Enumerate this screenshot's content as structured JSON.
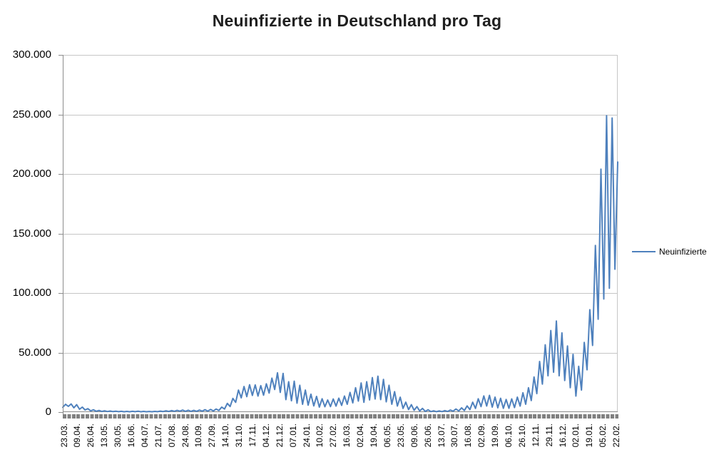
{
  "chart_data": {
    "type": "line",
    "title": "Neuinfizierte in Deutschland pro Tag",
    "xlabel": "",
    "ylabel": "",
    "ylim": [
      0,
      300000
    ],
    "grid": "horizontal",
    "legend_position": "right",
    "y_ticks": [
      0,
      50000,
      100000,
      150000,
      200000,
      250000,
      300000
    ],
    "y_tick_labels": [
      "0",
      "50.000",
      "100.000",
      "150.000",
      "200.000",
      "250.000",
      "300.000"
    ],
    "x_tick_step_categories": 17,
    "x_tick_labels": [
      "23.03.",
      "09.04.",
      "26.04.",
      "13.05.",
      "30.05.",
      "16.06.",
      "04.07.",
      "21.07.",
      "07.08.",
      "24.08.",
      "10.09.",
      "27.09.",
      "14.10.",
      "31.10.",
      "17.11.",
      "04.12.",
      "21.12.",
      "07.01.",
      "24.01.",
      "10.02.",
      "27.02.",
      "16.03.",
      "02.04.",
      "19.04.",
      "06.05.",
      "23.05.",
      "09.06.",
      "26.06.",
      "13.07.",
      "30.07.",
      "16.08.",
      "02.09.",
      "19.09.",
      "06.10.",
      "26.10.",
      "12.11.",
      "29.11.",
      "16.12.",
      "02.01.",
      "19.01.",
      "05.02.",
      "22.02."
    ],
    "series": [
      {
        "name": "Neuinfizierte",
        "color": "#4F81BD",
        "sampling": "two points per week (weekly minimum, weekly maximum), read from pixels",
        "values": [
          4000,
          6500,
          4800,
          6800,
          3600,
          6200,
          2400,
          4200,
          1800,
          2900,
          1000,
          1900,
          700,
          1400,
          550,
          1100,
          450,
          900,
          400,
          750,
          350,
          650,
          300,
          600,
          320,
          650,
          380,
          750,
          320,
          600,
          280,
          550,
          320,
          600,
          380,
          850,
          450,
          1050,
          550,
          1250,
          650,
          1450,
          750,
          1700,
          650,
          1550,
          620,
          1450,
          650,
          1650,
          750,
          1950,
          850,
          2200,
          950,
          2600,
          1300,
          4200,
          2600,
          7300,
          4700,
          11500,
          8200,
          18500,
          12000,
          21500,
          13000,
          23000,
          14000,
          22800,
          13500,
          22200,
          14200,
          23800,
          16000,
          28500,
          19000,
          33000,
          16500,
          32500,
          10500,
          25500,
          9500,
          26000,
          7500,
          22500,
          6500,
          18500,
          5800,
          15000,
          5200,
          13200,
          4200,
          11200,
          4500,
          10200,
          4600,
          11000,
          5000,
          11700,
          5600,
          13500,
          6600,
          16500,
          7700,
          20500,
          9200,
          24500,
          8200,
          25500,
          10200,
          29000,
          11000,
          30200,
          10500,
          27500,
          8600,
          22500,
          6600,
          17200,
          5100,
          12500,
          3100,
          8300,
          2100,
          6200,
          1500,
          4600,
          950,
          3100,
          550,
          1900,
          420,
          1100,
          380,
          950,
          420,
          1250,
          520,
          1700,
          750,
          2600,
          950,
          3600,
          1300,
          5200,
          2100,
          8300,
          3100,
          11200,
          4600,
          13600,
          5100,
          14100,
          4200,
          12600,
          3600,
          11600,
          3200,
          10600,
          3200,
          11100,
          3800,
          12600,
          5000,
          16200,
          6600,
          20500,
          9700,
          29500,
          15500,
          42500,
          23500,
          56500,
          30500,
          68500,
          33500,
          76500,
          30500,
          66500,
          26500,
          55500,
          20500,
          48500,
          13500,
          38500,
          18500,
          58500,
          35500,
          86000,
          56000,
          140000,
          78000,
          204000,
          95000,
          249000,
          104000,
          247000,
          120000,
          210000
        ]
      }
    ]
  },
  "colors": {
    "series": "#4F81BD",
    "gridline": "#C6C6C6",
    "axis": "#8C8C8C",
    "tick_bar": "#808080",
    "title_text": "#1f1f1f"
  }
}
